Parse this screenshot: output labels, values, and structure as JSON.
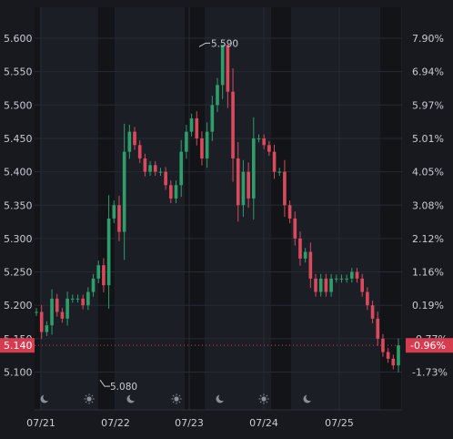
{
  "colors": {
    "background": "#17191f",
    "plot_background": "#1b1e25",
    "night_band": "#121418",
    "grid": "#262a33",
    "axis_text": "#c9ccd3",
    "up": "#2e9e6a",
    "down": "#d84a5c",
    "current_price_bg": "#d63c4f"
  },
  "chart_data": {
    "type": "candlestick",
    "title": "",
    "x_axis": {
      "tick_labels": [
        "07/21",
        "07/22",
        "07/23",
        "07/24",
        "07/25"
      ],
      "range": [
        "07/21",
        "07/25"
      ]
    },
    "y_axis_left": {
      "tick_labels": [
        "5.600",
        "5.550",
        "5.500",
        "5.450",
        "5.400",
        "5.350",
        "5.300",
        "5.250",
        "5.200",
        "5.150",
        "5.100"
      ],
      "range": [
        5.075,
        5.615
      ]
    },
    "y_axis_right": {
      "tick_labels": [
        "7.90%",
        "6.94%",
        "5.97%",
        "5.01%",
        "4.05%",
        "3.08%",
        "2.12%",
        "1.16%",
        "0.19%",
        "-0.77%",
        "-1.73%"
      ]
    },
    "reference_price": 5.19,
    "series": [
      {
        "values": [
          5.19,
          5.16,
          5.17,
          5.21,
          5.19,
          5.18,
          5.21,
          5.21,
          5.21,
          5.2,
          5.22,
          5.24,
          5.26,
          5.23,
          5.33,
          5.35,
          5.31,
          5.43,
          5.46,
          5.44,
          5.42,
          5.4,
          5.41,
          5.4,
          5.4,
          5.38,
          5.36,
          5.38,
          5.43,
          5.46,
          5.48,
          5.45,
          5.42,
          5.46,
          5.5,
          5.53,
          5.59,
          5.52,
          5.42,
          5.35,
          5.4,
          5.36,
          5.45,
          5.45,
          5.44,
          5.43,
          5.4,
          5.4,
          5.35,
          5.33,
          5.3,
          5.27,
          5.28,
          5.24,
          5.22,
          5.24,
          5.22,
          5.24,
          5.24,
          5.24,
          5.24,
          5.25,
          5.24,
          5.22,
          5.2,
          5.18,
          5.15,
          5.13,
          5.12,
          5.11,
          5.14
        ]
      }
    ],
    "annotations": [
      {
        "label": "5.590",
        "price": 5.59,
        "kind": "session_high"
      },
      {
        "label": "5.080",
        "price": 5.08,
        "kind": "session_low"
      }
    ],
    "current_price": {
      "label": "5.140",
      "value": 5.14,
      "change_label": "-0.96%"
    },
    "session_markers": [
      {
        "icon": "moon-icon"
      },
      {
        "icon": "sun-icon"
      },
      {
        "icon": "moon-icon"
      },
      {
        "icon": "sun-icon"
      },
      {
        "icon": "moon-icon"
      },
      {
        "icon": "sun-icon"
      },
      {
        "icon": "moon-icon"
      }
    ],
    "grid": true,
    "legend": "none"
  }
}
